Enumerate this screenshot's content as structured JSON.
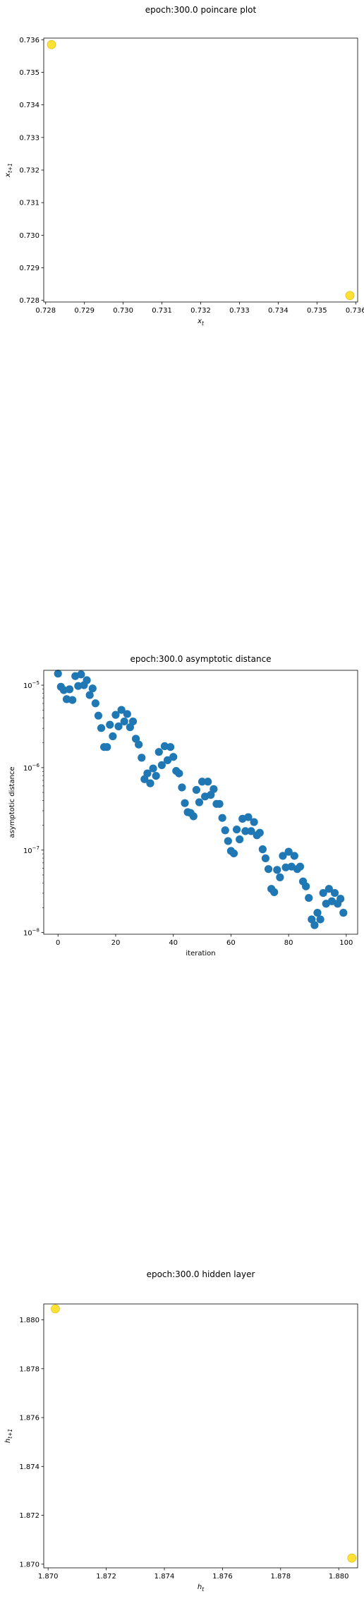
{
  "chart_data": [
    {
      "type": "scatter",
      "title": "epoch:300.0 poincare plot",
      "xlabel": "x_t",
      "ylabel": "x_{t+1}",
      "xlim": [
        0.72795,
        0.73605
      ],
      "ylim": [
        0.72795,
        0.73605
      ],
      "xticks": [
        0.728,
        0.729,
        0.73,
        0.731,
        0.732,
        0.733,
        0.734,
        0.735,
        0.736
      ],
      "yticks": [
        0.728,
        0.729,
        0.73,
        0.731,
        0.732,
        0.733,
        0.734,
        0.735,
        0.736
      ],
      "tick_decimals": 3,
      "marker_color": "#ffe135",
      "points": [
        {
          "x": 0.72815,
          "y": 0.73585
        },
        {
          "x": 0.73585,
          "y": 0.72815
        }
      ]
    },
    {
      "type": "scatter",
      "title": "epoch:300.0 asymptotic distance",
      "xlabel": "iteration",
      "ylabel": "asymptotic distance",
      "xlim": [
        -4.95,
        103.95
      ],
      "ylim_log10": [
        -8.02,
        -4.82
      ],
      "yscale": "log",
      "xticks": [
        0,
        20,
        40,
        60,
        80,
        100
      ],
      "yticks_log10": [
        -8,
        -7,
        -6,
        -5
      ],
      "marker_color": "#1f77b4",
      "x": [
        0,
        1,
        2,
        3,
        4,
        5,
        6,
        7,
        8,
        9,
        10,
        11,
        12,
        13,
        14,
        15,
        16,
        17,
        18,
        19,
        20,
        21,
        22,
        23,
        24,
        25,
        26,
        27,
        28,
        29,
        30,
        31,
        32,
        33,
        34,
        35,
        36,
        37,
        38,
        39,
        40,
        41,
        42,
        43,
        44,
        45,
        46,
        47,
        48,
        49,
        50,
        51,
        52,
        53,
        54,
        55,
        56,
        57,
        58,
        59,
        60,
        61,
        62,
        63,
        64,
        65,
        66,
        67,
        68,
        69,
        70,
        71,
        72,
        73,
        74,
        75,
        76,
        77,
        78,
        79,
        80,
        81,
        82,
        83,
        84,
        85,
        86,
        87,
        88,
        89,
        90,
        91,
        92,
        93,
        94,
        95,
        96,
        97,
        98,
        99
      ],
      "y_log10": [
        -4.86,
        -5.02,
        -5.06,
        -5.17,
        -5.05,
        -5.18,
        -4.89,
        -5.01,
        -4.87,
        -5.0,
        -4.94,
        -5.12,
        -5.04,
        -5.22,
        -5.37,
        -5.52,
        -5.75,
        -5.75,
        -5.48,
        -5.62,
        -5.36,
        -5.5,
        -5.3,
        -5.44,
        -5.35,
        -5.51,
        -5.44,
        -5.65,
        -5.72,
        -5.88,
        -6.14,
        -6.07,
        -6.19,
        -6.01,
        -6.1,
        -5.81,
        -5.97,
        -5.74,
        -5.91,
        -5.75,
        -5.87,
        -6.04,
        -6.07,
        -6.24,
        -6.43,
        -6.54,
        -6.55,
        -6.59,
        -6.27,
        -6.42,
        -6.17,
        -6.35,
        -6.17,
        -6.33,
        -6.26,
        -6.44,
        -6.44,
        -6.61,
        -6.76,
        -6.89,
        -7.01,
        -7.04,
        -6.75,
        -6.87,
        -6.62,
        -6.77,
        -6.6,
        -6.77,
        -6.66,
        -6.82,
        -6.79,
        -6.99,
        -7.1,
        -7.23,
        -7.47,
        -7.51,
        -7.24,
        -7.33,
        -7.07,
        -7.21,
        -7.02,
        -7.2,
        -7.07,
        -7.23,
        -7.2,
        -7.38,
        -7.44,
        -7.58,
        -7.84,
        -7.91,
        -7.76,
        -7.84,
        -7.52,
        -7.65,
        -7.47,
        -7.62,
        -7.52,
        -7.65,
        -7.59,
        -7.76
      ]
    },
    {
      "type": "scatter",
      "title": "epoch:300.0 hidden layer",
      "xlabel": "h_t",
      "ylabel": "h_{t+1}",
      "xlim": [
        1.86985,
        1.88065
      ],
      "ylim": [
        1.86985,
        1.88065
      ],
      "xticks": [
        1.87,
        1.872,
        1.874,
        1.876,
        1.878,
        1.88
      ],
      "yticks": [
        1.87,
        1.872,
        1.874,
        1.876,
        1.878,
        1.88
      ],
      "tick_decimals": 3,
      "marker_color": "#ffe135",
      "points": [
        {
          "x": 1.87025,
          "y": 1.88045
        },
        {
          "x": 1.88045,
          "y": 1.87025
        }
      ]
    }
  ]
}
